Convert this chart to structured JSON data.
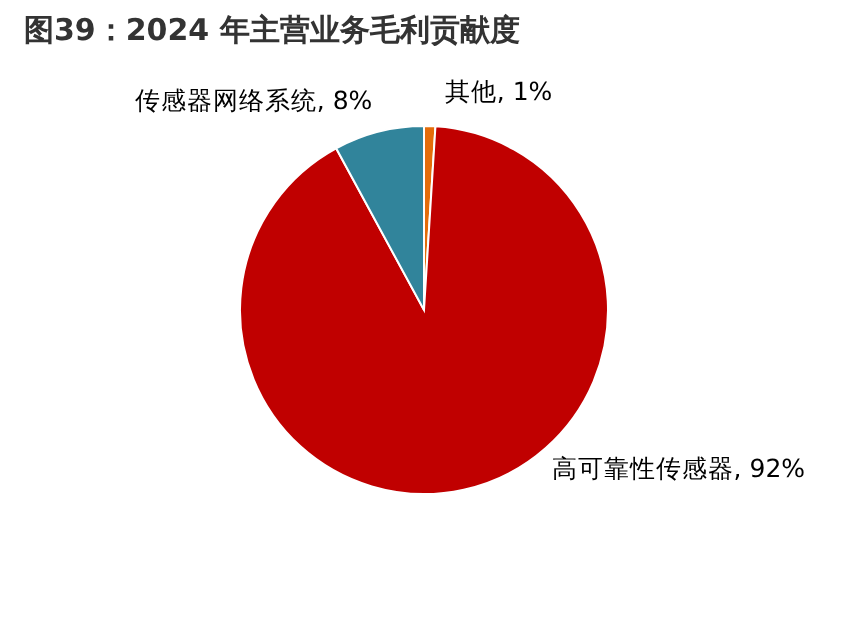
{
  "chart_data": {
    "type": "pie",
    "title": "图39：2024 年主营业务毛利贡献度",
    "categories": [
      "其他",
      "高可靠性传感器",
      "传感器网络系统"
    ],
    "values": [
      1,
      92,
      8
    ],
    "value_labels": [
      "1%",
      "92%",
      "8%"
    ],
    "colors": [
      "#e46c0a",
      "#c00000",
      "#31849b"
    ]
  }
}
